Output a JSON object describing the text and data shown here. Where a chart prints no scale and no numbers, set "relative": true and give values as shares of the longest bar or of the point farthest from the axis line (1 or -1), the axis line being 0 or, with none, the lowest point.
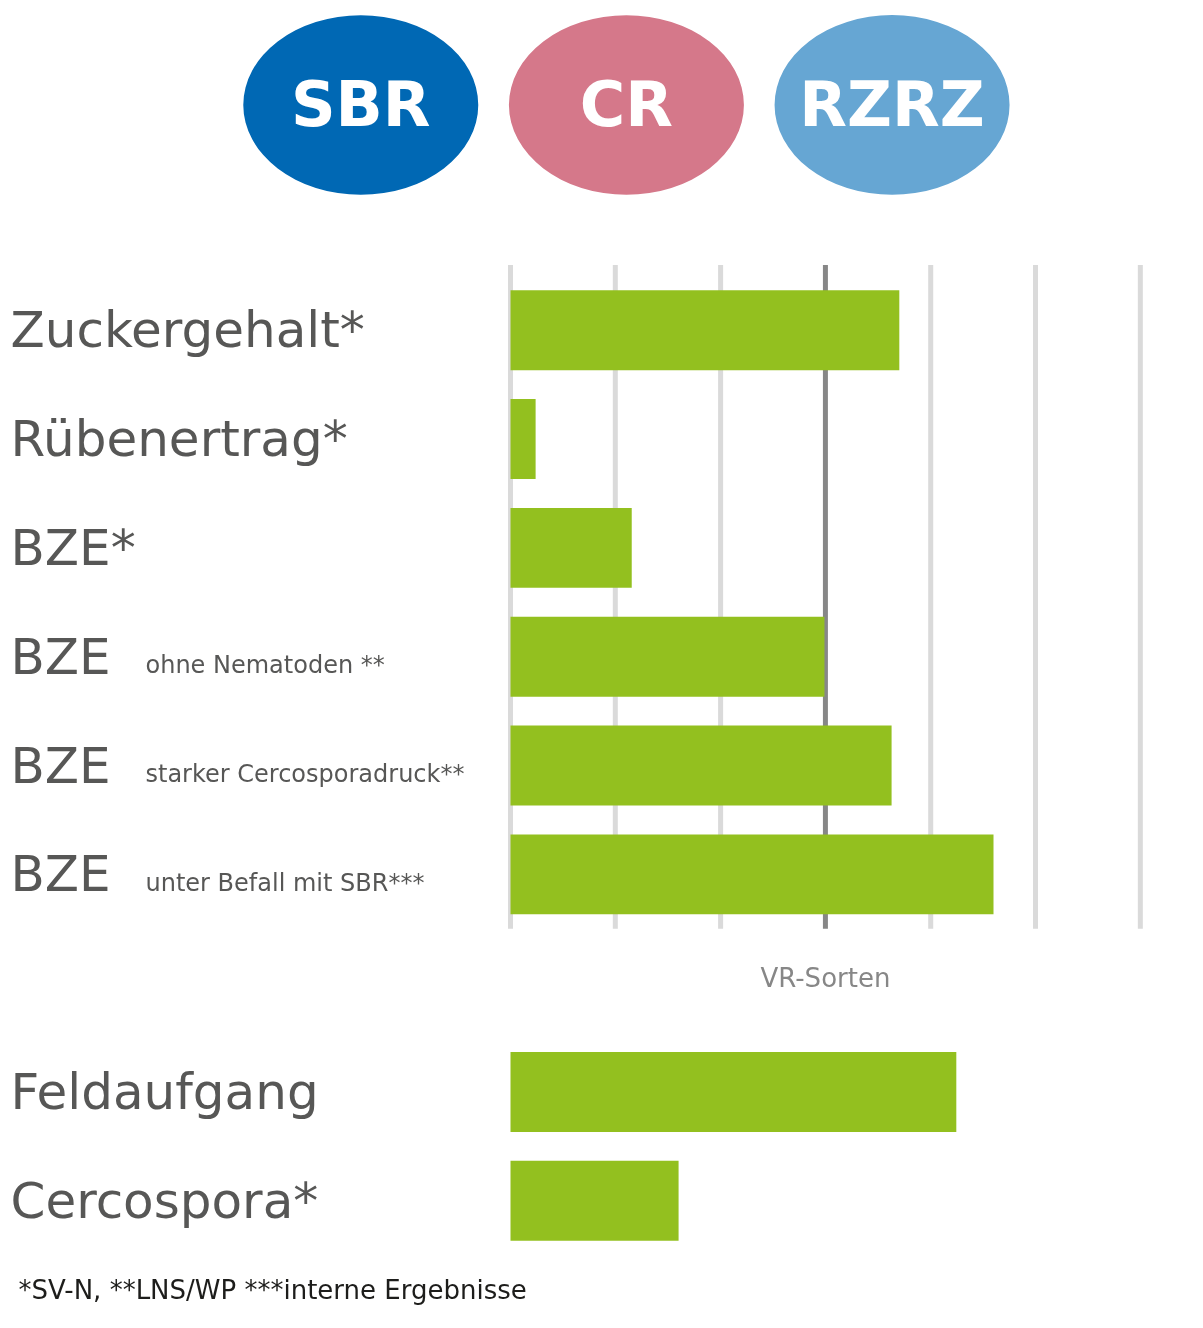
{
  "chart_data": {
    "type": "bar",
    "orientation": "horizontal",
    "relative": true,
    "categories": [
      "Zuckergehalt*",
      "Rübenertrag*",
      "BZE*",
      "BZE ohne Nematoden **",
      "BZE starker Cercosporadruck**",
      "BZE unter Befall mit SBR***",
      null,
      "Feldaufgang",
      "Cercospora*"
    ],
    "values": [
      0.805,
      0.052,
      0.251,
      0.65,
      0.789,
      1,
      null,
      0.923,
      0.348
    ],
    "color": "#93c01f",
    "ref_lines": [
      {
        "axis": "x",
        "value": 0,
        "color": "#dadada"
      },
      {
        "axis": "x",
        "value": 0.217,
        "color": "#dadada"
      },
      {
        "axis": "x",
        "value": 0.435,
        "color": "#dadada"
      },
      {
        "axis": "x",
        "value": 0.652,
        "label": "VR-Sorten",
        "color": "#878787"
      },
      {
        "axis": "x",
        "value": 0.87,
        "color": "#dadada"
      },
      {
        "axis": "x",
        "value": 1.087,
        "color": "#dadada"
      },
      {
        "axis": "x",
        "value": 1.304,
        "color": "#dadada"
      }
    ],
    "annotations": [
      "SBR",
      "CR",
      "RZRZ",
      "*SV-N, **LNS/WP ***interne Ergebnisse"
    ],
    "grid": false
  }
}
